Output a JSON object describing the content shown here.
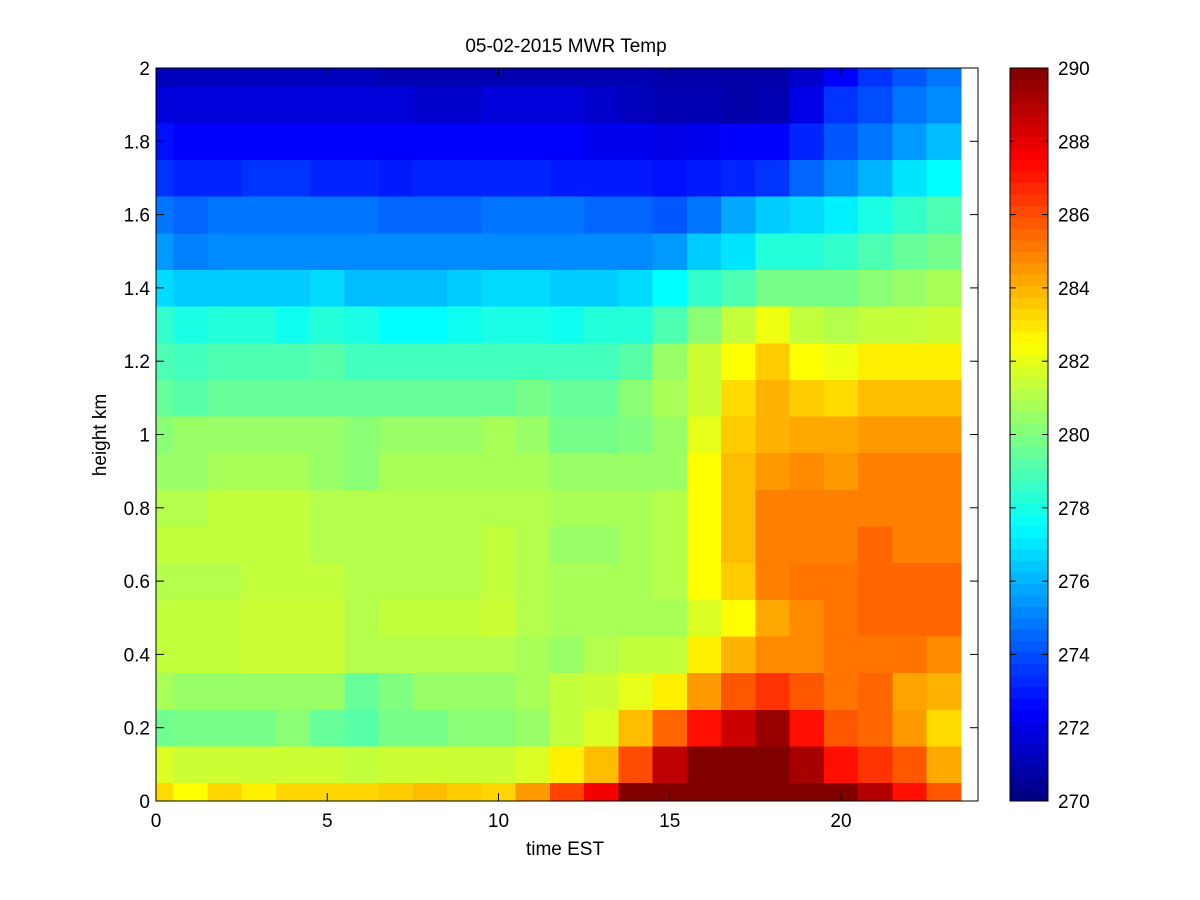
{
  "chart_data": {
    "type": "heatmap",
    "title": "05-02-2015 MWR Temp",
    "xlabel": "time EST",
    "ylabel": "height km",
    "xlim": [
      0,
      24
    ],
    "ylim": [
      0,
      2
    ],
    "x_ticks": [
      "0",
      "5",
      "10",
      "15",
      "20"
    ],
    "y_ticks": [
      "0",
      "0.2",
      "0.4",
      "0.6",
      "0.8",
      "1",
      "1.2",
      "1.4",
      "1.6",
      "1.8",
      "2"
    ],
    "colorbar": {
      "range": [
        270,
        290
      ],
      "ticks": [
        "270",
        "272",
        "274",
        "276",
        "278",
        "280",
        "282",
        "284",
        "286",
        "288",
        "290"
      ],
      "colormap": "jet"
    },
    "grid": false,
    "x_hours": [
      0,
      1,
      2,
      3,
      4,
      5,
      6,
      7,
      8,
      9,
      10,
      11,
      12,
      13,
      14,
      15,
      16,
      17,
      18,
      19,
      20,
      21,
      22,
      23
    ],
    "heights_km": [
      0,
      0.1,
      0.2,
      0.3,
      0.4,
      0.5,
      0.6,
      0.7,
      0.8,
      0.9,
      1.0,
      1.1,
      1.2,
      1.3,
      1.4,
      1.5,
      1.6,
      1.7,
      1.8,
      1.9,
      2.0
    ],
    "temperature_K": [
      [
        283.2,
        282.5,
        283.3,
        282.8,
        283.3,
        283.3,
        283.3,
        283.5,
        283.8,
        283.5,
        283.3,
        284.5,
        286.2,
        287.7,
        290.0,
        290.0,
        290.0,
        290.0,
        290.0,
        290.0,
        290.0,
        289.0,
        287.2,
        285.8
      ],
      [
        281.8,
        281.5,
        281.5,
        281.5,
        281.5,
        281.5,
        281.3,
        281.5,
        281.5,
        281.5,
        281.5,
        281.8,
        282.8,
        283.8,
        286.0,
        288.8,
        290.0,
        290.0,
        290.0,
        289.2,
        287.2,
        286.5,
        285.8,
        284.2
      ],
      [
        279.7,
        279.8,
        279.8,
        279.8,
        280.2,
        279.5,
        279.2,
        279.8,
        279.8,
        280.2,
        280.2,
        280.5,
        281.3,
        281.8,
        283.8,
        285.5,
        287.2,
        288.5,
        289.5,
        287.2,
        285.8,
        285.5,
        284.5,
        283.2
      ],
      [
        280.8,
        280.5,
        280.5,
        280.5,
        280.5,
        280.5,
        279.5,
        280.0,
        280.5,
        280.5,
        280.5,
        280.8,
        281.3,
        281.5,
        282.0,
        282.8,
        284.5,
        285.8,
        286.5,
        285.8,
        285.2,
        285.5,
        284.3,
        284.0
      ],
      [
        281.3,
        281.3,
        281.3,
        281.5,
        281.5,
        281.5,
        281.0,
        281.0,
        281.0,
        281.0,
        281.0,
        280.8,
        280.5,
        281.0,
        281.3,
        281.3,
        282.8,
        284.0,
        284.8,
        284.8,
        285.2,
        285.2,
        285.2,
        284.8
      ],
      [
        281.3,
        281.3,
        281.3,
        281.5,
        281.5,
        281.5,
        281.0,
        281.3,
        281.3,
        281.3,
        281.5,
        281.0,
        280.8,
        280.8,
        280.8,
        280.8,
        281.8,
        282.5,
        284.2,
        284.8,
        285.2,
        285.5,
        285.5,
        285.5
      ],
      [
        281.0,
        281.0,
        281.0,
        281.3,
        281.3,
        281.3,
        281.0,
        281.0,
        281.0,
        281.0,
        281.3,
        281.0,
        280.8,
        280.8,
        280.8,
        281.0,
        282.5,
        283.5,
        285.0,
        285.2,
        285.2,
        285.5,
        285.5,
        285.5
      ],
      [
        281.3,
        281.3,
        281.3,
        281.3,
        281.3,
        281.0,
        281.0,
        281.0,
        281.0,
        281.0,
        281.3,
        281.0,
        280.5,
        280.5,
        280.8,
        281.0,
        282.5,
        283.8,
        285.0,
        285.0,
        285.0,
        285.5,
        285.0,
        285.0
      ],
      [
        281.0,
        281.0,
        281.3,
        281.3,
        281.3,
        281.0,
        281.0,
        281.0,
        281.0,
        281.0,
        281.0,
        281.0,
        280.8,
        280.8,
        280.8,
        281.0,
        282.5,
        283.8,
        285.0,
        285.0,
        285.0,
        285.0,
        285.0,
        285.0
      ],
      [
        280.5,
        280.5,
        280.8,
        280.8,
        280.8,
        280.5,
        280.2,
        280.8,
        280.8,
        280.8,
        280.8,
        280.8,
        280.5,
        280.5,
        280.5,
        280.5,
        282.5,
        283.8,
        284.5,
        284.8,
        284.5,
        285.0,
        285.0,
        285.0
      ],
      [
        280.2,
        280.5,
        280.5,
        280.5,
        280.5,
        280.5,
        280.2,
        280.5,
        280.5,
        280.5,
        280.8,
        280.5,
        279.8,
        279.8,
        280.0,
        280.5,
        282.0,
        283.5,
        284.0,
        284.2,
        284.2,
        284.5,
        284.5,
        284.5
      ],
      [
        279.5,
        279.2,
        279.5,
        279.5,
        279.5,
        279.5,
        279.5,
        279.5,
        279.5,
        279.5,
        279.5,
        279.8,
        279.5,
        279.5,
        280.2,
        280.8,
        281.5,
        283.2,
        284.0,
        283.5,
        283.2,
        283.8,
        283.8,
        283.8
      ],
      [
        279.0,
        278.8,
        279.0,
        279.0,
        279.0,
        279.2,
        278.8,
        278.8,
        278.8,
        278.8,
        278.8,
        278.8,
        278.8,
        278.8,
        279.2,
        280.5,
        281.5,
        282.5,
        283.5,
        282.5,
        282.2,
        282.8,
        282.8,
        282.8
      ],
      [
        278.5,
        278.0,
        278.2,
        278.2,
        277.8,
        278.2,
        278.0,
        277.5,
        277.5,
        277.8,
        278.0,
        278.0,
        277.8,
        278.2,
        278.2,
        279.0,
        280.2,
        281.3,
        282.2,
        281.3,
        281.0,
        281.3,
        281.3,
        281.5
      ],
      [
        276.8,
        276.5,
        276.5,
        276.5,
        276.5,
        276.8,
        276.2,
        276.2,
        276.2,
        276.5,
        276.8,
        276.8,
        276.5,
        276.5,
        276.8,
        277.5,
        278.5,
        279.0,
        279.8,
        279.8,
        279.8,
        280.2,
        280.5,
        280.8
      ],
      [
        275.5,
        275.0,
        275.2,
        275.2,
        275.2,
        275.2,
        275.2,
        275.2,
        275.2,
        275.2,
        275.2,
        275.2,
        275.2,
        275.2,
        275.2,
        275.5,
        276.5,
        277.0,
        278.2,
        278.2,
        278.5,
        279.0,
        279.5,
        279.8
      ],
      [
        274.8,
        274.5,
        274.8,
        274.8,
        274.8,
        274.8,
        274.8,
        274.5,
        274.5,
        274.5,
        274.8,
        274.8,
        274.8,
        274.5,
        274.5,
        274.2,
        274.8,
        275.8,
        276.5,
        276.8,
        277.2,
        278.0,
        278.5,
        279.0
      ],
      [
        273.5,
        273.2,
        273.2,
        273.5,
        273.5,
        273.2,
        273.2,
        273.0,
        273.2,
        273.2,
        273.2,
        273.2,
        273.0,
        273.0,
        273.0,
        272.8,
        273.0,
        273.2,
        273.5,
        274.5,
        275.2,
        276.0,
        277.0,
        277.5
      ],
      [
        272.8,
        272.5,
        272.5,
        272.5,
        272.5,
        272.5,
        272.5,
        272.5,
        272.5,
        272.5,
        272.5,
        272.5,
        272.5,
        272.2,
        272.2,
        272.0,
        272.2,
        272.5,
        272.5,
        273.2,
        274.2,
        274.8,
        275.5,
        276.2
      ],
      [
        271.8,
        271.8,
        271.8,
        271.8,
        271.8,
        271.8,
        271.8,
        271.8,
        271.5,
        271.5,
        271.8,
        271.8,
        271.8,
        271.5,
        271.2,
        271.0,
        271.0,
        270.8,
        271.0,
        272.0,
        273.5,
        274.0,
        274.8,
        275.2
      ],
      [
        271.2,
        271.2,
        271.2,
        271.2,
        271.2,
        271.2,
        271.2,
        271.0,
        271.0,
        271.0,
        271.0,
        271.0,
        271.0,
        271.0,
        271.0,
        270.8,
        270.8,
        270.8,
        270.8,
        271.5,
        272.5,
        273.5,
        274.2,
        274.8
      ]
    ]
  }
}
